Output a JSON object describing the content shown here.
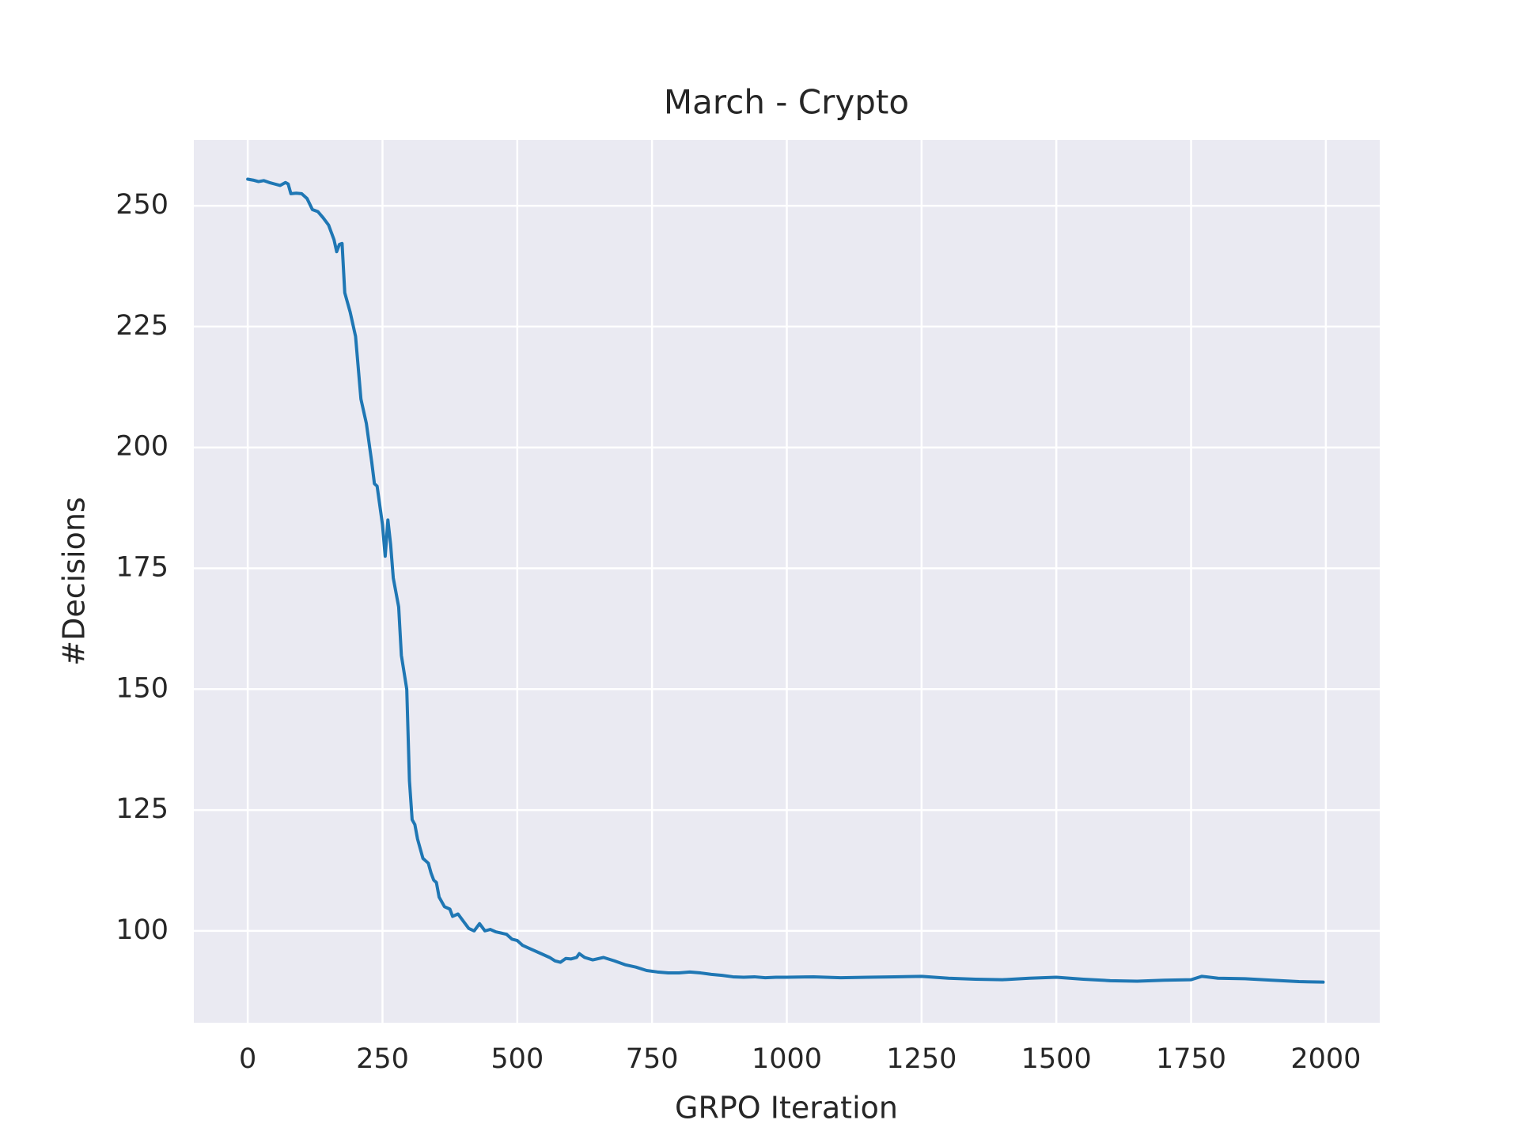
{
  "chart_data": {
    "type": "line",
    "title": "March - Crypto",
    "x_label": "GRPO Iteration",
    "y_label": "#Decisions",
    "color": "#1f77b4",
    "grid": true,
    "x": [
      0,
      10,
      20,
      30,
      40,
      50,
      60,
      70,
      75,
      80,
      90,
      100,
      110,
      120,
      130,
      140,
      150,
      160,
      165,
      170,
      175,
      180,
      190,
      200,
      210,
      220,
      230,
      235,
      240,
      250,
      255,
      260,
      265,
      270,
      280,
      285,
      295,
      300,
      305,
      310,
      315,
      320,
      325,
      335,
      340,
      345,
      350,
      355,
      365,
      375,
      380,
      390,
      400,
      410,
      420,
      430,
      440,
      450,
      460,
      480,
      490,
      500,
      510,
      520,
      540,
      560,
      570,
      580,
      590,
      600,
      610,
      615,
      625,
      640,
      660,
      680,
      700,
      720,
      740,
      760,
      780,
      800,
      820,
      840,
      860,
      880,
      900,
      920,
      940,
      960,
      980,
      1000,
      1050,
      1100,
      1150,
      1200,
      1250,
      1300,
      1350,
      1400,
      1450,
      1500,
      1550,
      1600,
      1650,
      1700,
      1750,
      1770,
      1800,
      1850,
      1900,
      1950,
      1995
    ],
    "values": [
      255.5,
      255.3,
      255,
      255.2,
      254.8,
      254.5,
      254.2,
      254.8,
      254.5,
      252.5,
      252.6,
      252.5,
      251.5,
      249.2,
      248.8,
      247.5,
      246,
      243,
      240.5,
      242,
      242.2,
      232,
      228,
      223,
      210,
      205,
      197,
      192.5,
      192,
      184,
      177.5,
      185,
      180,
      173,
      167,
      157,
      150,
      131,
      123,
      122,
      119,
      117,
      115,
      114,
      112,
      110.5,
      110,
      107,
      105,
      104.5,
      103,
      103.5,
      102,
      100.5,
      100,
      101.5,
      100,
      100.3,
      99.8,
      99.3,
      98.3,
      98,
      97,
      96.5,
      95.5,
      94.5,
      93.8,
      93.5,
      94.3,
      94.2,
      94.5,
      95.3,
      94.5,
      94,
      94.5,
      93.8,
      93,
      92.5,
      91.8,
      91.5,
      91.3,
      91.3,
      91.5,
      91.3,
      91,
      90.8,
      90.5,
      90.4,
      90.5,
      90.3,
      90.4,
      90.4,
      90.5,
      90.3,
      90.4,
      90.5,
      90.6,
      90.2,
      90,
      89.9,
      90.2,
      90.4,
      90,
      89.7,
      89.6,
      89.8,
      89.9,
      90.6,
      90.2,
      90.1,
      89.8,
      89.5,
      89.4
    ],
    "xlim": [
      -100,
      2100
    ],
    "xticks": [
      0,
      250,
      500,
      750,
      1000,
      1250,
      1500,
      1750,
      2000
    ],
    "ylim": [
      81,
      263.6
    ],
    "yticks": [
      100,
      125,
      150,
      175,
      200,
      225,
      250
    ]
  }
}
